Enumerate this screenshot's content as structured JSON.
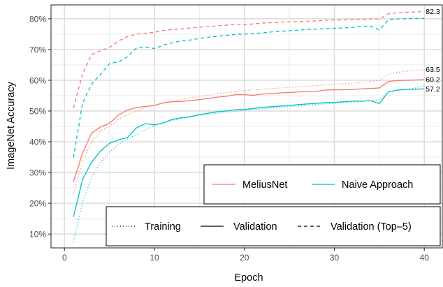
{
  "chart_data": {
    "type": "line",
    "xlabel": "Epoch",
    "ylabel": "ImageNet Accuracy",
    "xlim": [
      -1.5,
      42
    ],
    "ylim": [
      5.5,
      84.5
    ],
    "x_ticks": [
      0,
      10,
      20,
      30,
      40
    ],
    "x_tick_labels": [
      "0",
      "10",
      "20",
      "30",
      "40"
    ],
    "y_ticks": [
      10,
      20,
      30,
      40,
      50,
      60,
      70,
      80
    ],
    "y_tick_labels": [
      "10%",
      "20%",
      "30%",
      "40%",
      "50%",
      "60%",
      "70%",
      "80%"
    ],
    "grid": true,
    "x": [
      1,
      2,
      3,
      4,
      5,
      6,
      7,
      8,
      9,
      10,
      11,
      12,
      13,
      14,
      15,
      16,
      17,
      18,
      19,
      20,
      21,
      22,
      23,
      24,
      25,
      26,
      27,
      28,
      29,
      30,
      31,
      32,
      33,
      34,
      35,
      36,
      37,
      38,
      39,
      40
    ],
    "colors": {
      "MeliusNet": "#f8766d",
      "Naive Approach": "#00bfc4"
    },
    "series": [
      {
        "name": "MeliusNet",
        "line": "Training",
        "values": [
          23.3,
          33.5,
          40.0,
          43.5,
          45.0,
          47.3,
          48.8,
          50.0,
          51.0,
          51.9,
          52.6,
          53.3,
          53.8,
          54.3,
          54.8,
          55.2,
          55.6,
          56.0,
          56.3,
          56.6,
          56.9,
          57.1,
          57.3,
          57.5,
          57.7,
          57.9,
          58.1,
          58.3,
          58.5,
          58.7,
          58.9,
          59.1,
          59.3,
          59.6,
          59.9,
          62.0,
          62.6,
          62.9,
          63.2,
          63.5
        ]
      },
      {
        "name": "MeliusNet",
        "line": "Validation",
        "values": [
          27.1,
          36.2,
          42.8,
          44.8,
          46.0,
          48.7,
          50.3,
          51.1,
          51.5,
          51.8,
          52.7,
          53.0,
          53.1,
          53.4,
          53.7,
          54.1,
          54.5,
          54.8,
          55.3,
          55.3,
          55.1,
          55.5,
          55.7,
          55.9,
          56.0,
          56.2,
          56.3,
          56.4,
          56.8,
          56.9,
          56.9,
          57.0,
          57.2,
          57.3,
          57.5,
          59.6,
          59.9,
          60.0,
          60.1,
          60.2
        ]
      },
      {
        "name": "MeliusNet",
        "line": "Validation (Top-5)",
        "values": [
          51.0,
          62.0,
          68.3,
          69.6,
          70.6,
          72.8,
          74.2,
          75.0,
          75.3,
          75.6,
          76.2,
          76.5,
          76.7,
          77.0,
          77.2,
          77.5,
          77.7,
          77.9,
          78.2,
          78.1,
          78.3,
          78.6,
          78.7,
          78.9,
          79.0,
          79.1,
          79.2,
          79.3,
          79.5,
          79.6,
          79.6,
          79.7,
          79.8,
          79.9,
          79.9,
          81.6,
          81.9,
          82.1,
          82.2,
          82.3
        ]
      },
      {
        "name": "Naive Approach",
        "line": "Training",
        "values": [
          7.5,
          20.2,
          28.4,
          33.4,
          36.6,
          39.2,
          40.9,
          42.3,
          43.9,
          45.2,
          46.2,
          47.0,
          47.5,
          48.0,
          48.5,
          49.0,
          49.3,
          49.6,
          49.9,
          50.2,
          50.5,
          50.7,
          51.0,
          51.2,
          51.4,
          51.7,
          51.9,
          52.1,
          52.3,
          52.5,
          52.7,
          52.9,
          53.1,
          53.3,
          53.6,
          56.2,
          56.7,
          57.0,
          57.5,
          58.2
        ]
      },
      {
        "name": "Naive Approach",
        "line": "Validation",
        "values": [
          15.6,
          27.7,
          33.3,
          37.0,
          39.5,
          40.6,
          41.4,
          44.5,
          45.9,
          45.5,
          46.1,
          47.3,
          47.8,
          48.2,
          48.8,
          49.3,
          49.8,
          50.0,
          50.4,
          50.5,
          50.8,
          51.2,
          51.4,
          51.6,
          51.8,
          52.1,
          52.3,
          52.5,
          52.7,
          52.8,
          53.0,
          53.2,
          53.2,
          53.4,
          52.4,
          56.2,
          56.8,
          57.0,
          57.1,
          57.2
        ]
      },
      {
        "name": "Naive Approach",
        "line": "Validation (Top-5)",
        "values": [
          34.9,
          52.4,
          58.7,
          61.9,
          65.4,
          66.0,
          67.6,
          70.5,
          70.8,
          70.3,
          71.4,
          72.2,
          72.8,
          73.1,
          73.6,
          74.0,
          74.3,
          74.6,
          74.9,
          75.0,
          75.2,
          75.4,
          75.7,
          75.9,
          76.1,
          76.3,
          76.5,
          76.6,
          76.8,
          76.9,
          77.0,
          77.2,
          77.5,
          77.6,
          76.4,
          79.6,
          79.9,
          80.0,
          80.1,
          80.1
        ]
      }
    ],
    "end_labels": [
      {
        "text": "82.3",
        "value": 82.3
      },
      {
        "text": "63.5",
        "value": 63.5
      },
      {
        "text": "60.2",
        "value": 60.2
      },
      {
        "text": "57.2",
        "value": 57.2
      }
    ],
    "legend_series": {
      "position": "bottom-right",
      "items": [
        {
          "label": "MeliusNet",
          "key": "MeliusNet"
        },
        {
          "label": "Naive Approach",
          "key": "Naive Approach"
        }
      ]
    },
    "legend_linetype": {
      "position": "bottom",
      "items": [
        {
          "label": "Training",
          "dash": "dotted"
        },
        {
          "label": "Validation",
          "dash": "solid"
        },
        {
          "label": "Validation (Top–5)",
          "dash": "dashed"
        }
      ]
    }
  }
}
